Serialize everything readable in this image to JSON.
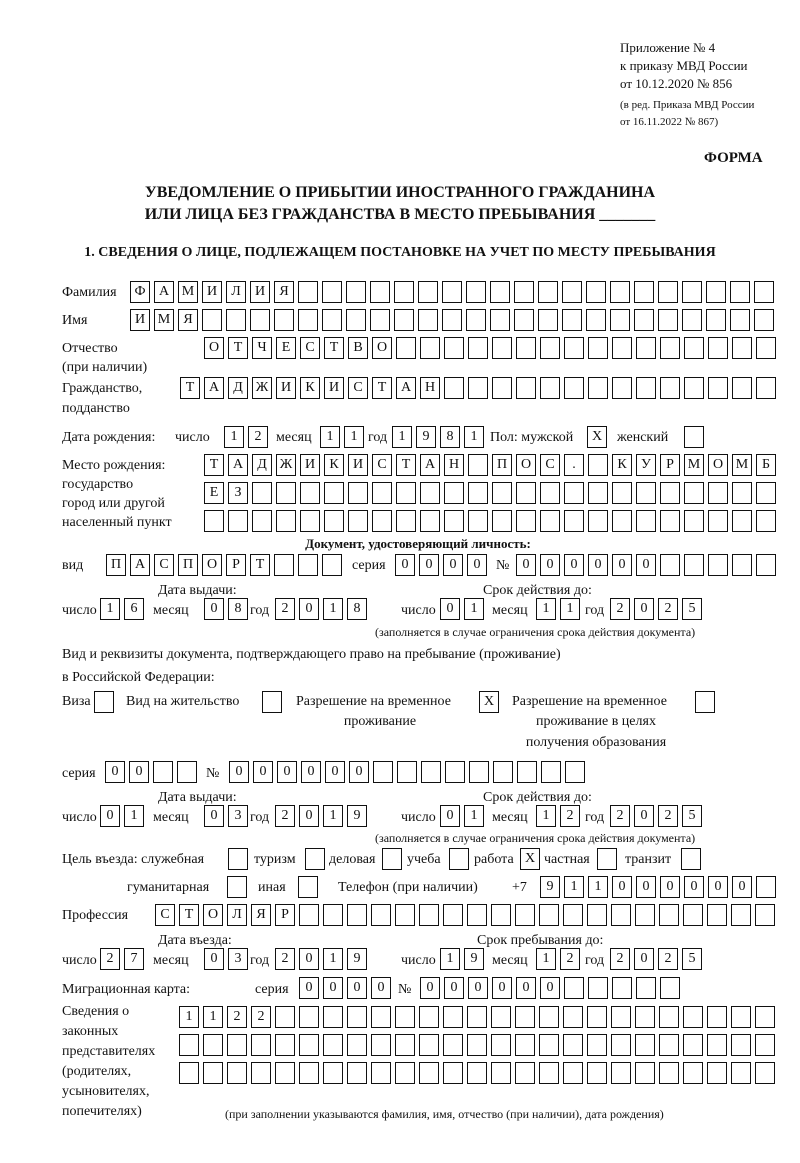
{
  "header": {
    "appendix": "Приложение № 4",
    "order": "к приказу МВД России",
    "order_date": "от 10.12.2020 № 856",
    "revision1": "(в ред. Приказа МВД России",
    "revision2": "от 16.11.2022 № 867)",
    "form_label": "ФОРМА",
    "title1": "УВЕДОМЛЕНИЕ О ПРИБЫТИИ ИНОСТРАННОГО ГРАЖДАНИНА",
    "title2": "ИЛИ ЛИЦА БЕЗ ГРАЖДАНСТВА В МЕСТО ПРЕБЫВАНИЯ _______",
    "section1": "1. СВЕДЕНИЯ О ЛИЦЕ, ПОДЛЕЖАЩЕМ ПОСТАНОВКЕ НА УЧЕТ ПО МЕСТУ ПРЕБЫВАНИЯ"
  },
  "labels": {
    "surname": "Фамилия",
    "name": "Имя",
    "patronymic": "Отчество",
    "patronymic2": "(при наличии)",
    "citizenship": "Гражданство,",
    "citizenship2": "подданство",
    "birth_date": "Дата рождения:",
    "day": "число",
    "month": "месяц",
    "year": "год",
    "sex": "Пол: мужской",
    "female": "женский",
    "birth_place1": "Место рождения:",
    "birth_place2": "государство",
    "birth_place3": "город или другой",
    "birth_place4": "населенный пункт",
    "id_doc": "Документ, удостоверяющий личность:",
    "kind": "вид",
    "series": "серия",
    "number": "№",
    "issue_date": "Дата выдачи:",
    "valid_until": "Срок действия до:",
    "valid_note": "(заполняется в случае ограничения срока действия документа)",
    "stay_doc1": "Вид и реквизиты документа, подтверждающего право на пребывание (проживание)",
    "stay_doc2": "в Российской Федерации:",
    "visa": "Виза",
    "residence": "Вид на жительство",
    "trp1": "Разрешение на временное",
    "trp2": "проживание",
    "trp_edu1": "Разрешение на временное",
    "trp_edu2": "проживание в целях",
    "trp_edu3": "получения образования",
    "purpose": "Цель въезда: служебная",
    "tourism": "туризм",
    "business": "деловая",
    "study": "учеба",
    "work": "работа",
    "private": "частная",
    "transit": "транзит",
    "humanitarian": "гуманитарная",
    "other": "иная",
    "phone": "Телефон (при наличии)",
    "phone_prefix": "+7",
    "profession": "Профессия",
    "entry_date": "Дата въезда:",
    "stay_until": "Срок пребывания до:",
    "migration_card": "Миграционная карта:",
    "reps1": "Сведения о",
    "reps2": "законных",
    "reps3": "представителях",
    "reps4": "(родителях,",
    "reps5": "усыновителях,",
    "reps6": "попечителях)",
    "reps_note": "(при заполнении указываются фамилия, имя, отчество (при наличии), дата рождения)"
  },
  "person": {
    "surname": "ФАМИЛИЯ",
    "name": "ИМЯ",
    "patronymic": "ОТЧЕСТВО",
    "citizenship": "ТАДЖИКИСТАН",
    "birth_day": "12",
    "birth_month": "11",
    "birth_year": "1981",
    "sex_male": "X",
    "sex_female": "",
    "birth_place1": "ТАДЖИКИСТАН ПОС. КУРМОМБ",
    "birth_place2": "ЕЗ",
    "birth_place3": ""
  },
  "id_document": {
    "kind": "ПАСПОРТ",
    "series": "0000",
    "number": "000000",
    "issue_day": "16",
    "issue_month": "08",
    "issue_year": "2018",
    "valid_day": "01",
    "valid_month": "11",
    "valid_year": "2025"
  },
  "stay_document": {
    "visa": "",
    "residence": "",
    "trp": "X",
    "trp_edu": "",
    "series": "00",
    "number": "000000",
    "issue_day": "01",
    "issue_month": "03",
    "issue_year": "2019",
    "valid_day": "01",
    "valid_month": "12",
    "valid_year": "2025"
  },
  "purpose": {
    "official": "",
    "tourism": "",
    "business": "",
    "study": "",
    "work": "X",
    "private": "",
    "transit": "",
    "humanitarian": "",
    "other": ""
  },
  "phone": "911000000",
  "profession": "СТОЛЯР",
  "entry": {
    "entry_day": "27",
    "entry_month": "03",
    "entry_year": "2019",
    "stay_day": "19",
    "stay_month": "12",
    "stay_year": "2025"
  },
  "migration_card": {
    "series": "0000",
    "number": "000000"
  },
  "representatives": {
    "line1": "1122",
    "line2": "",
    "line3": ""
  }
}
